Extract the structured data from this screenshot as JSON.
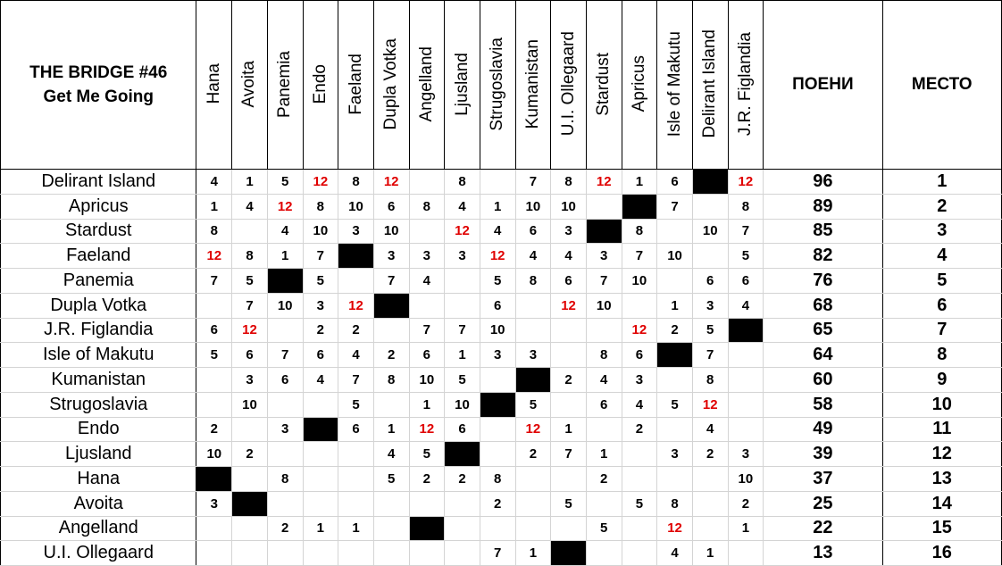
{
  "header": {
    "title": [
      "THE BRIDGE #46",
      "Get Me Going"
    ],
    "columns": [
      "Hana",
      "Avoita",
      "Panemia",
      "Endo",
      "Faeland",
      "Dupla Votka",
      "Angelland",
      "Ljusland",
      "Strugoslavia",
      "Kumanistan",
      "U.I. Ollegaard",
      "Stardust",
      "Apricus",
      "Isle of Makutu",
      "Delirant Island",
      "J.R. Figlandia"
    ],
    "points_label": "ПОЕНИ",
    "place_label": "МЕСТО"
  },
  "rows": [
    {
      "country": "Delirant Island",
      "votes": [
        4,
        1,
        5,
        12,
        8,
        12,
        null,
        8,
        null,
        7,
        8,
        12,
        1,
        6,
        null,
        12
      ],
      "points": 96,
      "place": 1
    },
    {
      "country": "Apricus",
      "votes": [
        1,
        4,
        12,
        8,
        10,
        6,
        8,
        4,
        1,
        10,
        10,
        null,
        null,
        7,
        null,
        8
      ],
      "points": 89,
      "place": 2
    },
    {
      "country": "Stardust",
      "votes": [
        8,
        null,
        4,
        10,
        3,
        10,
        null,
        12,
        4,
        6,
        3,
        null,
        8,
        null,
        10,
        7
      ],
      "points": 85,
      "place": 3
    },
    {
      "country": "Faeland",
      "votes": [
        12,
        8,
        1,
        7,
        null,
        3,
        3,
        3,
        12,
        4,
        4,
        3,
        7,
        10,
        null,
        5
      ],
      "points": 82,
      "place": 4
    },
    {
      "country": "Panemia",
      "votes": [
        7,
        5,
        null,
        5,
        null,
        7,
        4,
        null,
        5,
        8,
        6,
        7,
        10,
        null,
        6,
        6
      ],
      "points": 76,
      "place": 5
    },
    {
      "country": "Dupla Votka",
      "votes": [
        null,
        7,
        10,
        3,
        12,
        null,
        null,
        null,
        6,
        null,
        12,
        10,
        null,
        1,
        3,
        4
      ],
      "points": 68,
      "place": 6
    },
    {
      "country": "J.R. Figlandia",
      "votes": [
        6,
        12,
        null,
        2,
        2,
        null,
        7,
        7,
        10,
        null,
        null,
        null,
        12,
        2,
        5,
        null
      ],
      "points": 65,
      "place": 7
    },
    {
      "country": "Isle of Makutu",
      "votes": [
        5,
        6,
        7,
        6,
        4,
        2,
        6,
        1,
        3,
        3,
        null,
        8,
        6,
        null,
        7,
        null
      ],
      "points": 64,
      "place": 8
    },
    {
      "country": "Kumanistan",
      "votes": [
        null,
        3,
        6,
        4,
        7,
        8,
        10,
        5,
        null,
        null,
        2,
        4,
        3,
        null,
        8,
        null
      ],
      "points": 60,
      "place": 9
    },
    {
      "country": "Strugoslavia",
      "votes": [
        null,
        10,
        null,
        null,
        5,
        null,
        1,
        10,
        null,
        5,
        null,
        6,
        4,
        5,
        12,
        null
      ],
      "points": 58,
      "place": 10
    },
    {
      "country": "Endo",
      "votes": [
        2,
        null,
        3,
        null,
        6,
        1,
        12,
        6,
        null,
        12,
        1,
        null,
        2,
        null,
        4,
        null
      ],
      "points": 49,
      "place": 11
    },
    {
      "country": "Ljusland",
      "votes": [
        10,
        2,
        null,
        null,
        null,
        4,
        5,
        null,
        null,
        2,
        7,
        1,
        null,
        3,
        2,
        3
      ],
      "points": 39,
      "place": 12
    },
    {
      "country": "Hana",
      "votes": [
        null,
        null,
        8,
        null,
        null,
        5,
        2,
        2,
        8,
        null,
        null,
        2,
        null,
        null,
        null,
        10
      ],
      "points": 37,
      "place": 13
    },
    {
      "country": "Avoita",
      "votes": [
        3,
        null,
        null,
        null,
        null,
        null,
        null,
        null,
        2,
        null,
        5,
        null,
        5,
        8,
        null,
        2
      ],
      "points": 25,
      "place": 14
    },
    {
      "country": "Angelland",
      "votes": [
        null,
        null,
        2,
        1,
        1,
        null,
        null,
        null,
        null,
        null,
        null,
        5,
        null,
        12,
        null,
        1
      ],
      "points": 22,
      "place": 15
    },
    {
      "country": "U.I. Ollegaard",
      "votes": [
        null,
        null,
        null,
        null,
        null,
        null,
        null,
        null,
        7,
        1,
        null,
        null,
        null,
        4,
        1,
        null
      ],
      "points": 13,
      "place": 16
    }
  ]
}
